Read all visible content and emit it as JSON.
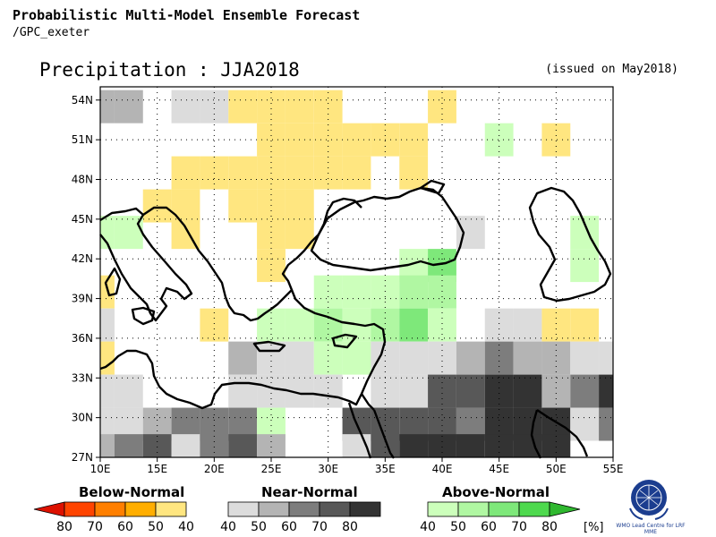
{
  "header": {
    "title": "Probabilistic Multi-Model Ensemble Forecast",
    "subtitle": "/GPC_exeter"
  },
  "map": {
    "title": "Precipitation : JJA2018",
    "issued": "(issued on May2018)",
    "lat_labels": [
      "54N",
      "51N",
      "48N",
      "45N",
      "42N",
      "39N",
      "36N",
      "33N",
      "30N",
      "27N"
    ],
    "lon_labels": [
      "10E",
      "15E",
      "20E",
      "25E",
      "30E",
      "35E",
      "40E",
      "45E",
      "50E",
      "55E"
    ],
    "lat_range": [
      27,
      55
    ],
    "lon_range": [
      10,
      55
    ]
  },
  "legend": {
    "unit": "[%]",
    "below": {
      "title": "Below-Normal",
      "labels": [
        "80",
        "70",
        "60",
        "50",
        "40"
      ],
      "colors": [
        "#dd1100",
        "#ff4400",
        "#ff7f00",
        "#ffae00",
        "#ffe680"
      ]
    },
    "near": {
      "title": "Near-Normal",
      "labels": [
        "40",
        "50",
        "60",
        "70",
        "80"
      ],
      "colors": [
        "#dcdcdc",
        "#b4b4b4",
        "#7d7d7d",
        "#585858",
        "#333333"
      ]
    },
    "above": {
      "title": "Above-Normal",
      "labels": [
        "40",
        "50",
        "60",
        "70",
        "80"
      ],
      "colors": [
        "#ccffbb",
        "#b0f7a2",
        "#7ee87a",
        "#4ed94e",
        "#2fb82f"
      ]
    }
  },
  "logo": {
    "name": "WMO",
    "caption": "WMO Lead Centre for LRF MME"
  },
  "forecast_cells": [
    {
      "lon": 10,
      "lat": 53.5,
      "cat": "near",
      "level": 1
    },
    {
      "lon": 12.5,
      "lat": 53.5,
      "cat": "near",
      "level": 1
    },
    {
      "lon": 17.5,
      "lat": 53.5,
      "cat": "near",
      "level": 0
    },
    {
      "lon": 20,
      "lat": 53.5,
      "cat": "near",
      "level": 0
    },
    {
      "lon": 22.5,
      "lat": 53.5,
      "cat": "below",
      "level": 0
    },
    {
      "lon": 25,
      "lat": 53.5,
      "cat": "below",
      "level": 0
    },
    {
      "lon": 27.5,
      "lat": 53.5,
      "cat": "below",
      "level": 0
    },
    {
      "lon": 30,
      "lat": 53.5,
      "cat": "below",
      "level": 0
    },
    {
      "lon": 40,
      "lat": 53.5,
      "cat": "below",
      "level": 0
    },
    {
      "lon": 25,
      "lat": 51,
      "cat": "below",
      "level": 0
    },
    {
      "lon": 27.5,
      "lat": 51,
      "cat": "below",
      "level": 0
    },
    {
      "lon": 30,
      "lat": 51,
      "cat": "below",
      "level": 0
    },
    {
      "lon": 32.5,
      "lat": 51,
      "cat": "below",
      "level": 0
    },
    {
      "lon": 35,
      "lat": 51,
      "cat": "below",
      "level": 0
    },
    {
      "lon": 37.5,
      "lat": 51,
      "cat": "below",
      "level": 0
    },
    {
      "lon": 45,
      "lat": 51,
      "cat": "above",
      "level": 0
    },
    {
      "lon": 50,
      "lat": 51,
      "cat": "below",
      "level": 0
    },
    {
      "lon": 17.5,
      "lat": 48.5,
      "cat": "below",
      "level": 0
    },
    {
      "lon": 20,
      "lat": 48.5,
      "cat": "below",
      "level": 0
    },
    {
      "lon": 22.5,
      "lat": 48.5,
      "cat": "below",
      "level": 0
    },
    {
      "lon": 25,
      "lat": 48.5,
      "cat": "below",
      "level": 0
    },
    {
      "lon": 27.5,
      "lat": 48.5,
      "cat": "below",
      "level": 0
    },
    {
      "lon": 30,
      "lat": 48.5,
      "cat": "below",
      "level": 0
    },
    {
      "lon": 32.5,
      "lat": 48.5,
      "cat": "below",
      "level": 0
    },
    {
      "lon": 37.5,
      "lat": 48.5,
      "cat": "below",
      "level": 0
    },
    {
      "lon": 15,
      "lat": 46,
      "cat": "below",
      "level": 0
    },
    {
      "lon": 17.5,
      "lat": 46,
      "cat": "below",
      "level": 0
    },
    {
      "lon": 22.5,
      "lat": 46,
      "cat": "below",
      "level": 0
    },
    {
      "lon": 25,
      "lat": 46,
      "cat": "below",
      "level": 0
    },
    {
      "lon": 27.5,
      "lat": 46,
      "cat": "below",
      "level": 0
    },
    {
      "lon": 10,
      "lat": 44,
      "cat": "above",
      "level": 0
    },
    {
      "lon": 12.5,
      "lat": 44,
      "cat": "above",
      "level": 0
    },
    {
      "lon": 17.5,
      "lat": 44,
      "cat": "below",
      "level": 0
    },
    {
      "lon": 25,
      "lat": 44,
      "cat": "below",
      "level": 0
    },
    {
      "lon": 27.5,
      "lat": 44,
      "cat": "below",
      "level": 0
    },
    {
      "lon": 42.5,
      "lat": 44,
      "cat": "near",
      "level": 0
    },
    {
      "lon": 52.5,
      "lat": 44,
      "cat": "above",
      "level": 0
    },
    {
      "lon": 25,
      "lat": 41.5,
      "cat": "below",
      "level": 0
    },
    {
      "lon": 37.5,
      "lat": 41.5,
      "cat": "above",
      "level": 0
    },
    {
      "lon": 40,
      "lat": 41.5,
      "cat": "above",
      "level": 2
    },
    {
      "lon": 52.5,
      "lat": 41.5,
      "cat": "above",
      "level": 0
    },
    {
      "lon": 10,
      "lat": 39.5,
      "cat": "below",
      "level": 0
    },
    {
      "lon": 30,
      "lat": 39.5,
      "cat": "above",
      "level": 0
    },
    {
      "lon": 32.5,
      "lat": 39.5,
      "cat": "above",
      "level": 0
    },
    {
      "lon": 35,
      "lat": 39.5,
      "cat": "above",
      "level": 0
    },
    {
      "lon": 37.5,
      "lat": 39.5,
      "cat": "above",
      "level": 1
    },
    {
      "lon": 40,
      "lat": 39.5,
      "cat": "above",
      "level": 1
    },
    {
      "lon": 10,
      "lat": 37,
      "cat": "near",
      "level": 0
    },
    {
      "lon": 20,
      "lat": 37,
      "cat": "below",
      "level": 0
    },
    {
      "lon": 25,
      "lat": 37,
      "cat": "above",
      "level": 0
    },
    {
      "lon": 27.5,
      "lat": 37,
      "cat": "above",
      "level": 0
    },
    {
      "lon": 30,
      "lat": 37,
      "cat": "above",
      "level": 1
    },
    {
      "lon": 32.5,
      "lat": 37,
      "cat": "above",
      "level": 0
    },
    {
      "lon": 35,
      "lat": 37,
      "cat": "above",
      "level": 1
    },
    {
      "lon": 37.5,
      "lat": 37,
      "cat": "above",
      "level": 2
    },
    {
      "lon": 40,
      "lat": 37,
      "cat": "above",
      "level": 0
    },
    {
      "lon": 45,
      "lat": 37,
      "cat": "near",
      "level": 0
    },
    {
      "lon": 47.5,
      "lat": 37,
      "cat": "near",
      "level": 0
    },
    {
      "lon": 50,
      "lat": 37,
      "cat": "below",
      "level": 0
    },
    {
      "lon": 52.5,
      "lat": 37,
      "cat": "below",
      "level": 0
    },
    {
      "lon": 10,
      "lat": 34.5,
      "cat": "below",
      "level": 0
    },
    {
      "lon": 22.5,
      "lat": 34.5,
      "cat": "near",
      "level": 1
    },
    {
      "lon": 25,
      "lat": 34.5,
      "cat": "near",
      "level": 0
    },
    {
      "lon": 27.5,
      "lat": 34.5,
      "cat": "near",
      "level": 0
    },
    {
      "lon": 30,
      "lat": 34.5,
      "cat": "above",
      "level": 0
    },
    {
      "lon": 32.5,
      "lat": 34.5,
      "cat": "above",
      "level": 0
    },
    {
      "lon": 35,
      "lat": 34.5,
      "cat": "near",
      "level": 0
    },
    {
      "lon": 37.5,
      "lat": 34.5,
      "cat": "near",
      "level": 0
    },
    {
      "lon": 40,
      "lat": 34.5,
      "cat": "near",
      "level": 0
    },
    {
      "lon": 42.5,
      "lat": 34.5,
      "cat": "near",
      "level": 1
    },
    {
      "lon": 45,
      "lat": 34.5,
      "cat": "near",
      "level": 2
    },
    {
      "lon": 47.5,
      "lat": 34.5,
      "cat": "near",
      "level": 1
    },
    {
      "lon": 50,
      "lat": 34.5,
      "cat": "near",
      "level": 1
    },
    {
      "lon": 52.5,
      "lat": 34.5,
      "cat": "near",
      "level": 0
    },
    {
      "lon": 55,
      "lat": 34.5,
      "cat": "near",
      "level": 0
    },
    {
      "lon": 10,
      "lat": 32,
      "cat": "near",
      "level": 0
    },
    {
      "lon": 12.5,
      "lat": 32,
      "cat": "near",
      "level": 0
    },
    {
      "lon": 22.5,
      "lat": 32,
      "cat": "near",
      "level": 0
    },
    {
      "lon": 25,
      "lat": 32,
      "cat": "near",
      "level": 0
    },
    {
      "lon": 27.5,
      "lat": 32,
      "cat": "near",
      "level": 0
    },
    {
      "lon": 30,
      "lat": 32,
      "cat": "near",
      "level": 0
    },
    {
      "lon": 35,
      "lat": 32,
      "cat": "near",
      "level": 0
    },
    {
      "lon": 37.5,
      "lat": 32,
      "cat": "near",
      "level": 0
    },
    {
      "lon": 40,
      "lat": 32,
      "cat": "near",
      "level": 3
    },
    {
      "lon": 42.5,
      "lat": 32,
      "cat": "near",
      "level": 3
    },
    {
      "lon": 45,
      "lat": 32,
      "cat": "near",
      "level": 4
    },
    {
      "lon": 47.5,
      "lat": 32,
      "cat": "near",
      "level": 4
    },
    {
      "lon": 50,
      "lat": 32,
      "cat": "near",
      "level": 1
    },
    {
      "lon": 52.5,
      "lat": 32,
      "cat": "near",
      "level": 2
    },
    {
      "lon": 55,
      "lat": 32,
      "cat": "near",
      "level": 4
    },
    {
      "lon": 10,
      "lat": 29.5,
      "cat": "near",
      "level": 0
    },
    {
      "lon": 12.5,
      "lat": 29.5,
      "cat": "near",
      "level": 0
    },
    {
      "lon": 15,
      "lat": 29.5,
      "cat": "near",
      "level": 1
    },
    {
      "lon": 17.5,
      "lat": 29.5,
      "cat": "near",
      "level": 2
    },
    {
      "lon": 20,
      "lat": 29.5,
      "cat": "near",
      "level": 2
    },
    {
      "lon": 22.5,
      "lat": 29.5,
      "cat": "near",
      "level": 2
    },
    {
      "lon": 25,
      "lat": 29.5,
      "cat": "above",
      "level": 0
    },
    {
      "lon": 32.5,
      "lat": 29.5,
      "cat": "near",
      "level": 3
    },
    {
      "lon": 35,
      "lat": 29.5,
      "cat": "near",
      "level": 3
    },
    {
      "lon": 37.5,
      "lat": 29.5,
      "cat": "near",
      "level": 3
    },
    {
      "lon": 40,
      "lat": 29.5,
      "cat": "near",
      "level": 3
    },
    {
      "lon": 42.5,
      "lat": 29.5,
      "cat": "near",
      "level": 2
    },
    {
      "lon": 45,
      "lat": 29.5,
      "cat": "near",
      "level": 4
    },
    {
      "lon": 47.5,
      "lat": 29.5,
      "cat": "near",
      "level": 4
    },
    {
      "lon": 50,
      "lat": 29.5,
      "cat": "near",
      "level": 4
    },
    {
      "lon": 52.5,
      "lat": 29.5,
      "cat": "near",
      "level": 0
    },
    {
      "lon": 55,
      "lat": 29.5,
      "cat": "near",
      "level": 2
    },
    {
      "lon": 10,
      "lat": 27.5,
      "cat": "near",
      "level": 1
    },
    {
      "lon": 12.5,
      "lat": 27.5,
      "cat": "near",
      "level": 2
    },
    {
      "lon": 15,
      "lat": 27.5,
      "cat": "near",
      "level": 3
    },
    {
      "lon": 17.5,
      "lat": 27.5,
      "cat": "near",
      "level": 0
    },
    {
      "lon": 20,
      "lat": 27.5,
      "cat": "near",
      "level": 2
    },
    {
      "lon": 22.5,
      "lat": 27.5,
      "cat": "near",
      "level": 3
    },
    {
      "lon": 25,
      "lat": 27.5,
      "cat": "near",
      "level": 1
    },
    {
      "lon": 32.5,
      "lat": 27.5,
      "cat": "near",
      "level": 0
    },
    {
      "lon": 35,
      "lat": 27.5,
      "cat": "near",
      "level": 3
    },
    {
      "lon": 37.5,
      "lat": 27.5,
      "cat": "near",
      "level": 4
    },
    {
      "lon": 40,
      "lat": 27.5,
      "cat": "near",
      "level": 4
    },
    {
      "lon": 42.5,
      "lat": 27.5,
      "cat": "near",
      "level": 4
    },
    {
      "lon": 45,
      "lat": 27.5,
      "cat": "near",
      "level": 4
    },
    {
      "lon": 47.5,
      "lat": 27.5,
      "cat": "near",
      "level": 4
    },
    {
      "lon": 50,
      "lat": 27.5,
      "cat": "near",
      "level": 4
    }
  ]
}
